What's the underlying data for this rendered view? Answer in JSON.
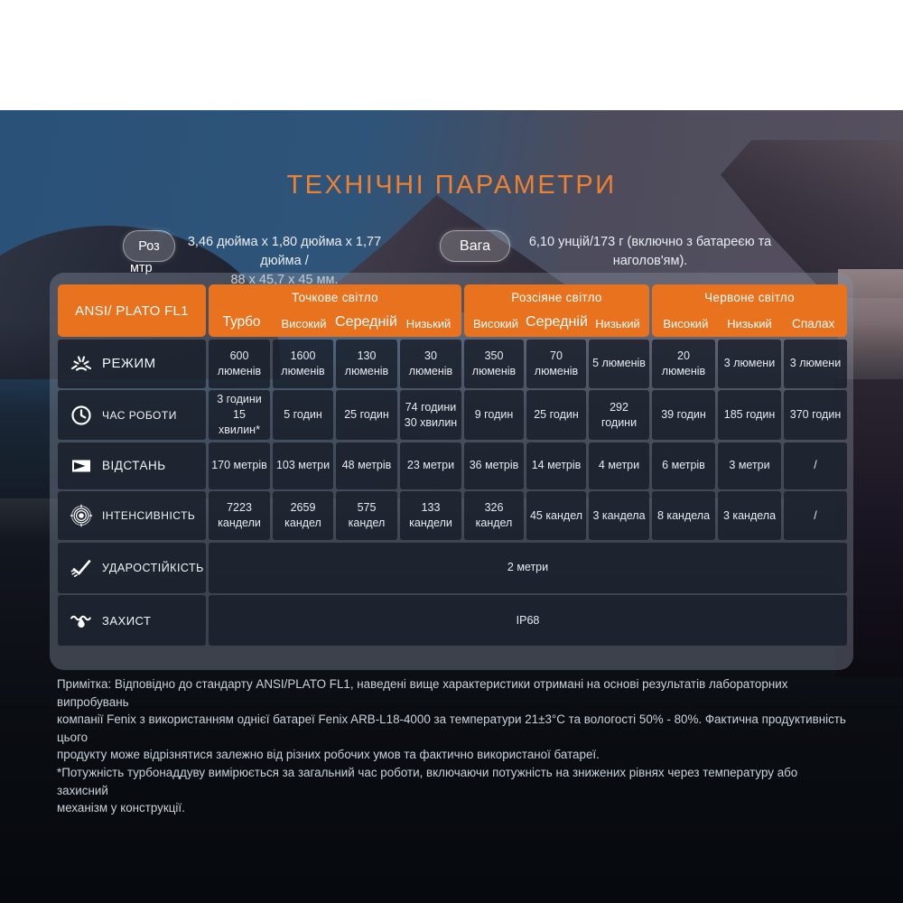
{
  "title": "ТЕХНІЧНІ ПАРАМЕТРИ",
  "specs": {
    "size_badge_line1": "Роз",
    "size_badge_line2": "мтр",
    "size_value_line1": "3,46 дюйма х 1,80 дюйма х 1,77 дюйма /",
    "size_value_line2": "88 х 45,7 х 45 мм.",
    "weight_badge": "Вага",
    "weight_value_line1": "6,10 унцій/173 г (включно з батареєю та",
    "weight_value_line2": "наголов'ям)."
  },
  "table": {
    "corner_label": "ANSI/ PLATO FL1",
    "groups": [
      {
        "label": "Точкове світло",
        "cols": [
          "Турбо",
          "Високий",
          "Середній",
          "Низький"
        ]
      },
      {
        "label": "Розсіяне світло",
        "cols": [
          "Високий",
          "Середній",
          "Низький"
        ]
      },
      {
        "label": "Червоне світло",
        "cols": [
          "Високий",
          "Низький",
          "Спалах"
        ]
      }
    ],
    "rows": [
      {
        "label": "РЕЖИМ",
        "icon": "sunburst-icon",
        "cells": [
          "600 люменів",
          "1600 люменів",
          "130 люменів",
          "30 люменів",
          "350 люменів",
          "70 люменів",
          "5 люменів",
          "20 люменів",
          "3 люмени",
          "3 люмени"
        ]
      },
      {
        "label": "ЧАС РОБОТИ",
        "icon": "clock-icon",
        "cells": [
          "3 години 15 хвилин*",
          "5 годин",
          "25 годин",
          "74 години 30 хвилин",
          "9 годин",
          "25 годин",
          "292 години",
          "39 годин",
          "185 годин",
          "370 годин"
        ]
      },
      {
        "label": "ВІДСТАНЬ",
        "icon": "beam-distance-icon",
        "cells": [
          "170 метрів",
          "103 метри",
          "48 метрів",
          "23 метри",
          "36 метрів",
          "14 метрів",
          "4 метри",
          "6 метрів",
          "3 метри",
          "/"
        ]
      },
      {
        "label": "ІНТЕНСИВНІСТЬ",
        "icon": "target-icon",
        "cells": [
          "7223 кандели",
          "2659 кандел",
          "575 кандел",
          "133 кандели",
          "326 кандел",
          "45 кандел",
          "3 кандела",
          "8 кандела",
          "3 кандела",
          "/"
        ]
      },
      {
        "label": "УДАРОСТІЙКІСТЬ",
        "icon": "impact-check-icon",
        "span_value": "2 метри"
      },
      {
        "label": "ЗАХИСТ",
        "icon": "water-splash-icon",
        "span_value": "IP68"
      }
    ]
  },
  "footnote": {
    "lines": [
      "Примітка: Відповідно до стандарту ANSI/PLATO FL1, наведені вище характеристики отримані на основі результатів лабораторних випробувань",
      "компанії Fenix з використанням однієї батареї Fenix ARB-L18-4000 за температури 21±3°C та вологості 50% - 80%. Фактична продуктивність цього",
      "продукту може відрізнятися залежно від різних робочих умов та фактично використаної батареї.",
      "*Потужність турбонаддуву вимірюється за загальний час роботи, включаючи потужність на знижених рівнях через температуру або захисний",
      "механізм у конструкції."
    ]
  },
  "colors": {
    "accent_orange": "#E8721E",
    "title_orange": "#EC8132",
    "cell_bg": "#151C27",
    "panel_bg": "#8A93A3",
    "note_text": "#C9D2DA"
  }
}
